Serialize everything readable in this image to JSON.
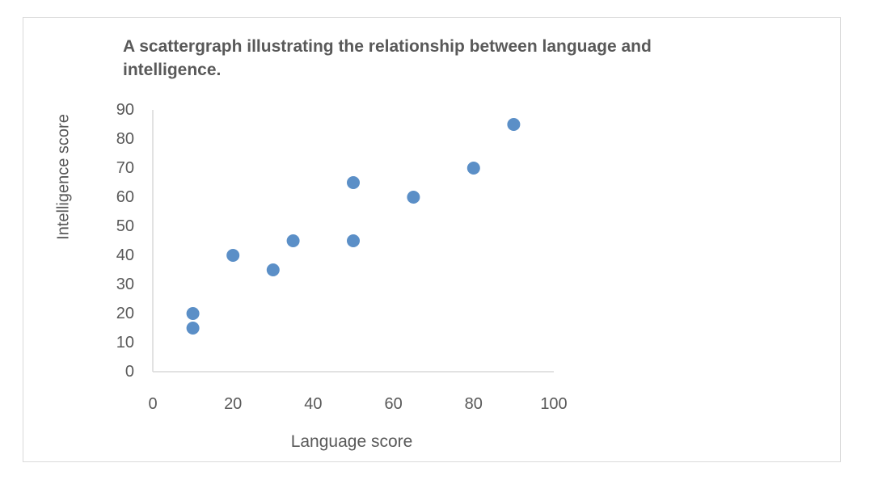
{
  "chart_data": {
    "type": "scatter",
    "title": "A scattergraph illustrating the relationship between language and intelligence.",
    "xlabel": "Language score",
    "ylabel": "Intelligence score",
    "xlim": [
      0,
      100
    ],
    "ylim": [
      0,
      90
    ],
    "xticks": [
      0,
      20,
      40,
      60,
      80,
      100
    ],
    "yticks": [
      0,
      10,
      20,
      30,
      40,
      50,
      60,
      70,
      80,
      90
    ],
    "grid": false,
    "legend": "none",
    "marker_color": "#5b8fc7",
    "series": [
      {
        "points": [
          {
            "x": 10,
            "y": 20
          },
          {
            "x": 10,
            "y": 15
          },
          {
            "x": 20,
            "y": 40
          },
          {
            "x": 30,
            "y": 35
          },
          {
            "x": 35,
            "y": 45
          },
          {
            "x": 50,
            "y": 65
          },
          {
            "x": 50,
            "y": 45
          },
          {
            "x": 65,
            "y": 60
          },
          {
            "x": 80,
            "y": 70
          },
          {
            "x": 90,
            "y": 85
          }
        ]
      }
    ]
  }
}
